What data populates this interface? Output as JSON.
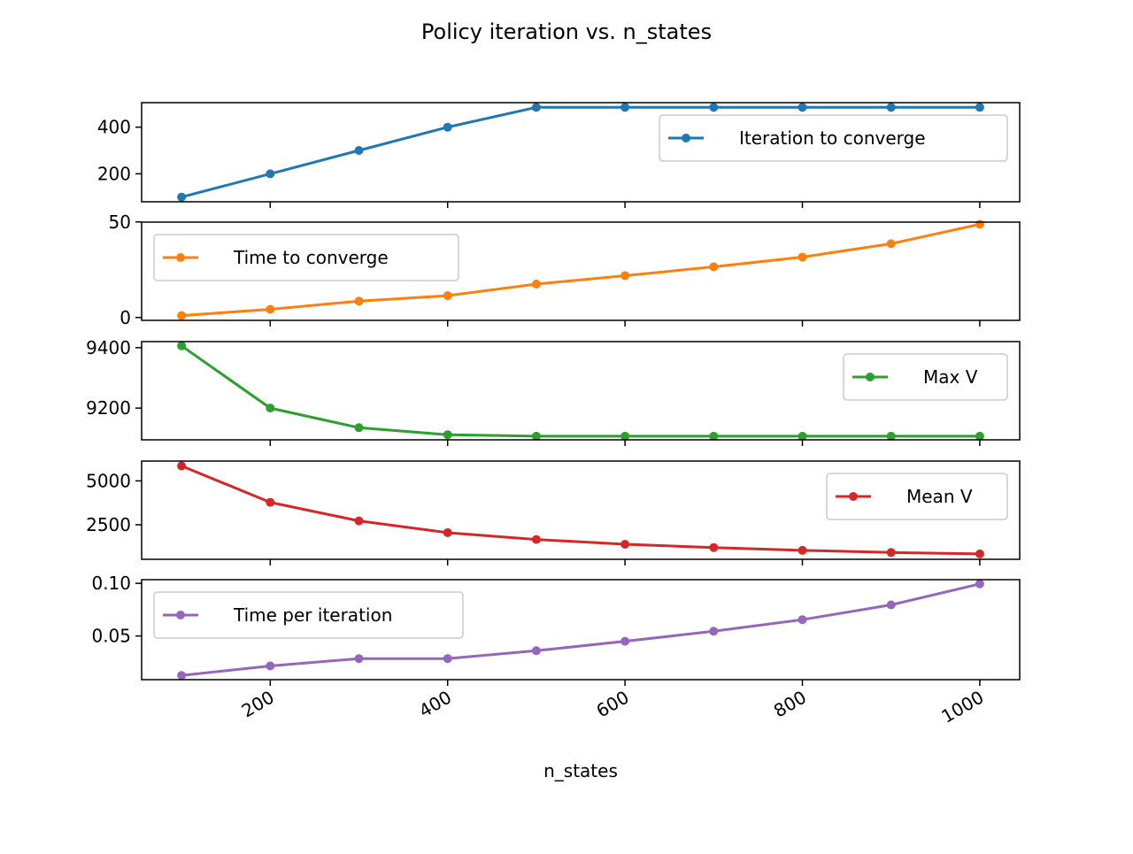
{
  "chart_data": {
    "type": "line",
    "title": "Policy iteration vs. n_states",
    "xlabel": "n_states",
    "x": [
      100,
      200,
      300,
      400,
      500,
      600,
      700,
      800,
      900,
      1000
    ],
    "xlim": [
      55,
      1045
    ],
    "x_ticks": [
      200,
      400,
      600,
      800,
      1000
    ],
    "x_tick_labels": [
      "200",
      "400",
      "600",
      "800",
      "1000"
    ],
    "x_tick_rotation": 30,
    "grid": false,
    "subplots": [
      {
        "series": {
          "name": "Iteration to converge",
          "values": [
            100,
            200,
            300,
            400,
            485,
            485,
            485,
            485,
            485,
            485
          ],
          "color": "#1f77b4"
        },
        "ylim": [
          80,
          505
        ],
        "y_ticks": [
          200,
          400
        ],
        "y_tick_labels": [
          "200",
          "400"
        ],
        "legend": "upper right"
      },
      {
        "series": {
          "name": "Time to converge",
          "values": [
            1,
            4.3,
            8.6,
            11.4,
            17.5,
            21.9,
            26.5,
            31.6,
            38.6,
            48.8
          ],
          "color": "#ff7f0e"
        },
        "ylim": [
          -1.5,
          49.9
        ],
        "y_ticks": [
          0,
          50
        ],
        "y_tick_labels": [
          "0",
          "50"
        ],
        "legend": "upper left"
      },
      {
        "series": {
          "name": "Max V",
          "values": [
            9406,
            9200,
            9135,
            9112,
            9107,
            9107,
            9107,
            9107,
            9107,
            9107
          ],
          "color": "#2ca02c"
        },
        "ylim": [
          9095,
          9420
        ],
        "y_ticks": [
          9200,
          9400
        ],
        "y_tick_labels": [
          "9200",
          "9400"
        ],
        "legend": "upper right"
      },
      {
        "series": {
          "name": "Mean V",
          "values": [
            5850,
            3780,
            2720,
            2050,
            1660,
            1390,
            1200,
            1040,
            920,
            840
          ],
          "color": "#d62728"
        },
        "ylim": [
          530,
          6130
        ],
        "y_ticks": [
          2500,
          5000
        ],
        "y_tick_labels": [
          "2500",
          "5000"
        ],
        "legend": "upper right"
      },
      {
        "series": {
          "name": "Time per iteration",
          "values": [
            0.0125,
            0.0215,
            0.0285,
            0.0285,
            0.036,
            0.045,
            0.0545,
            0.0655,
            0.0795,
            0.0995
          ],
          "color": "#9467bd"
        },
        "ylim": [
          0.0085,
          0.1035
        ],
        "y_ticks": [
          0.05,
          0.1
        ],
        "y_tick_labels": [
          "0.05",
          "0.10"
        ],
        "legend": "upper left"
      }
    ]
  }
}
